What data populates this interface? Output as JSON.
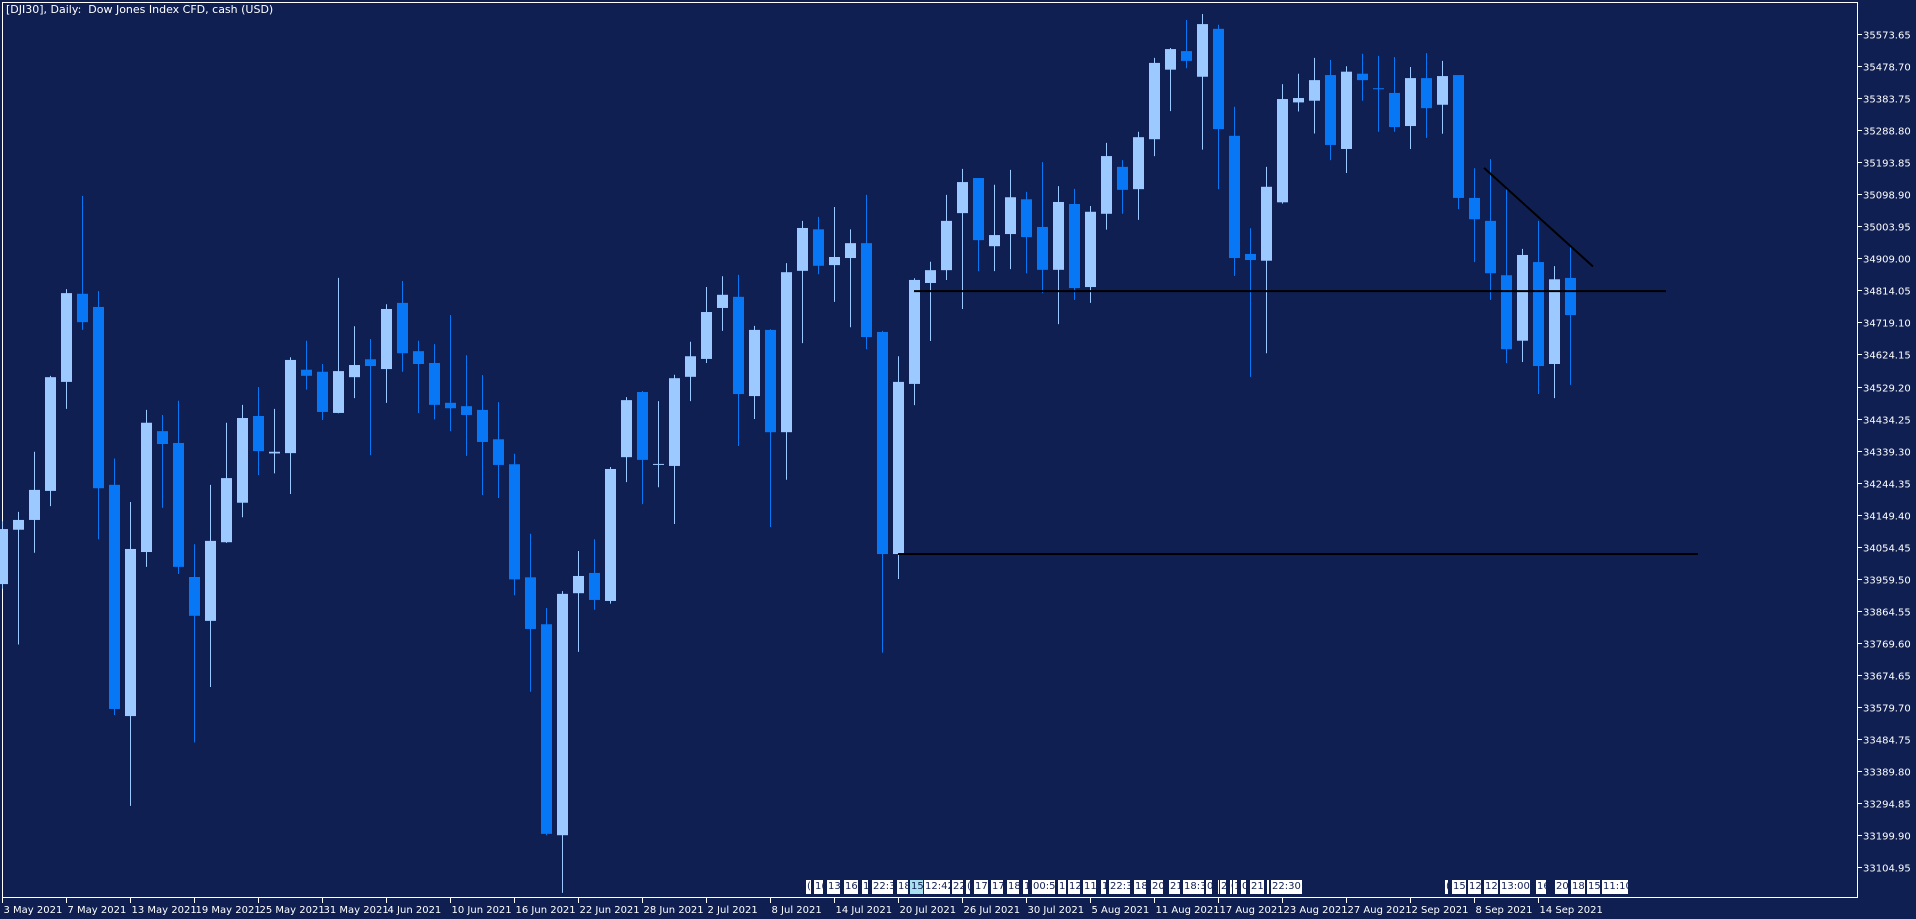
{
  "header": {
    "title": "[DJI30], Daily:  Dow Jones Index CFD, cash (USD)"
  },
  "colors": {
    "background": "#101f52",
    "bull": "#9cc9ff",
    "bear": "#0877f6",
    "axis": "#ffffff",
    "lines": "#000000",
    "event_highlight": "#a8e0ee"
  },
  "events": [
    "(",
    "1(",
    "13(",
    "16",
    "1",
    "22:3",
    "18",
    "15",
    "12:42",
    "22",
    "(",
    "17",
    "17",
    "18",
    "1",
    "00:5",
    "11",
    "12:",
    "11:",
    "1",
    "22:3",
    "18",
    "20",
    "21",
    "18:3",
    "0",
    "(",
    "2",
    "0",
    "1",
    "0",
    "21",
    ":",
    "22:30",
    "(",
    "15",
    "12:",
    "12:",
    "13:00",
    "16",
    "20",
    "18",
    "15",
    "11:10"
  ],
  "chart_data": {
    "type": "candlestick",
    "symbol": "DJI30",
    "timeframe": "Daily",
    "ylim": [
      33009,
      35674
    ],
    "grid": false,
    "y_ticks": [
      "35573.65",
      "35478.70",
      "35383.75",
      "35288.80",
      "35193.85",
      "35098.90",
      "35003.95",
      "34909.00",
      "34814.05",
      "34719.10",
      "34624.15",
      "34529.20",
      "34434.25",
      "34339.30",
      "34244.35",
      "34149.40",
      "34054.45",
      "33959.50",
      "33864.55",
      "33769.60",
      "33674.65",
      "33579.70",
      "33484.75",
      "33389.80",
      "33294.85",
      "33199.90",
      "33104.95"
    ],
    "x_ticks": [
      "3 May 2021",
      "7 May 2021",
      "13 May 2021",
      "19 May 2021",
      "25 May 2021",
      "31 May 2021",
      "4 Jun 2021",
      "10 Jun 2021",
      "16 Jun 2021",
      "22 Jun 2021",
      "28 Jun 2021",
      "2 Jul 2021",
      "8 Jul 2021",
      "14 Jul 2021",
      "20 Jul 2021",
      "26 Jul 2021",
      "30 Jul 2021",
      "5 Aug 2021",
      "11 Aug 2021",
      "17 Aug 2021",
      "23 Aug 2021",
      "27 Aug 2021",
      "2 Sep 2021",
      "8 Sep 2021",
      "14 Sep 2021"
    ],
    "columns": [
      "date",
      "open",
      "high",
      "low",
      "close"
    ],
    "bars": [
      [
        "2021-05-03",
        33944,
        34130,
        33930,
        34107
      ],
      [
        "2021-05-04",
        34105,
        34158,
        33765,
        34134
      ],
      [
        "2021-05-05",
        34134,
        34336,
        34037,
        34223
      ],
      [
        "2021-05-06",
        34220,
        34561,
        34175,
        34557
      ],
      [
        "2021-05-07",
        34543,
        34818,
        34463,
        34806
      ],
      [
        "2021-05-10",
        34804,
        35094,
        34697,
        34720
      ],
      [
        "2021-05-11",
        34765,
        34812,
        34077,
        34228
      ],
      [
        "2021-05-12",
        34238,
        34316,
        33556,
        33574
      ],
      [
        "2021-05-13",
        33553,
        34187,
        33287,
        34048
      ],
      [
        "2021-05-14",
        34039,
        34460,
        33995,
        34422
      ],
      [
        "2021-05-17",
        34397,
        34445,
        34170,
        34359
      ],
      [
        "2021-05-18",
        34362,
        34487,
        33974,
        33995
      ],
      [
        "2021-05-19",
        33965,
        34062,
        33475,
        33850
      ],
      [
        "2021-05-20",
        33835,
        34238,
        33639,
        34072
      ],
      [
        "2021-05-21",
        34068,
        34422,
        34066,
        34258
      ],
      [
        "2021-05-24",
        34185,
        34475,
        34142,
        34436
      ],
      [
        "2021-05-25",
        34442,
        34528,
        34267,
        34338
      ],
      [
        "2021-05-26",
        34331,
        34463,
        34272,
        34336
      ],
      [
        "2021-05-27",
        34332,
        34616,
        34211,
        34608
      ],
      [
        "2021-05-28",
        34579,
        34665,
        34520,
        34561
      ],
      [
        "2021-05-31",
        34573,
        34596,
        34430,
        34454
      ],
      [
        "2021-06-01",
        34451,
        34851,
        34450,
        34575
      ],
      [
        "2021-06-02",
        34557,
        34708,
        34495,
        34593
      ],
      [
        "2021-06-03",
        34610,
        34670,
        34326,
        34590
      ],
      [
        "2021-06-04",
        34581,
        34773,
        34481,
        34759
      ],
      [
        "2021-06-07",
        34777,
        34842,
        34573,
        34628
      ],
      [
        "2021-06-08",
        34634,
        34665,
        34451,
        34596
      ],
      [
        "2021-06-09",
        34599,
        34655,
        34432,
        34475
      ],
      [
        "2021-06-10",
        34481,
        34741,
        34397,
        34465
      ],
      [
        "2021-06-11",
        34471,
        34622,
        34324,
        34445
      ],
      [
        "2021-06-14",
        34460,
        34563,
        34208,
        34365
      ],
      [
        "2021-06-15",
        34373,
        34483,
        34199,
        34297
      ],
      [
        "2021-06-16",
        34299,
        34330,
        33911,
        33958
      ],
      [
        "2021-06-17",
        33964,
        34093,
        33625,
        33811
      ],
      [
        "2021-06-18",
        33825,
        33873,
        33200,
        33204
      ],
      [
        "2021-06-21",
        33200,
        33923,
        33029,
        33915
      ],
      [
        "2021-06-22",
        33917,
        34042,
        33743,
        33968
      ],
      [
        "2021-06-23",
        33977,
        34077,
        33868,
        33897
      ],
      [
        "2021-06-24",
        33894,
        34291,
        33886,
        34285
      ],
      [
        "2021-06-25",
        34320,
        34498,
        34246,
        34489
      ],
      [
        "2021-06-28",
        34513,
        34516,
        34181,
        34312
      ],
      [
        "2021-06-29",
        34297,
        34486,
        34231,
        34300
      ],
      [
        "2021-06-30",
        34294,
        34564,
        34122,
        34554
      ],
      [
        "2021-07-01",
        34558,
        34662,
        34486,
        34619
      ],
      [
        "2021-07-02",
        34611,
        34824,
        34599,
        34750
      ],
      [
        "2021-07-05",
        34762,
        34856,
        34694,
        34801
      ],
      [
        "2021-07-06",
        34795,
        34860,
        34353,
        34507
      ],
      [
        "2021-07-07",
        34501,
        34709,
        34433,
        34697
      ],
      [
        "2021-07-08",
        34697,
        34699,
        34113,
        34394
      ],
      [
        "2021-07-09",
        34394,
        34895,
        34253,
        34868
      ],
      [
        "2021-07-12",
        34872,
        35020,
        34658,
        34999
      ],
      [
        "2021-07-13",
        34995,
        35032,
        34862,
        34887
      ],
      [
        "2021-07-14",
        34889,
        35061,
        34780,
        34913
      ],
      [
        "2021-07-15",
        34910,
        34995,
        34705,
        34954
      ],
      [
        "2021-07-16",
        34954,
        35097,
        34640,
        34676
      ],
      [
        "2021-07-19",
        34691,
        34694,
        33741,
        34033
      ],
      [
        "2021-07-20",
        34033,
        34619,
        33959,
        34543
      ],
      [
        "2021-07-21",
        34537,
        34850,
        34474,
        34845
      ],
      [
        "2021-07-22",
        34836,
        34899,
        34664,
        34874
      ],
      [
        "2021-07-23",
        34874,
        35097,
        34845,
        35020
      ],
      [
        "2021-07-26",
        35043,
        35174,
        34759,
        35135
      ],
      [
        "2021-07-27",
        35147,
        35147,
        34871,
        34963
      ],
      [
        "2021-07-28",
        34945,
        35127,
        34871,
        34978
      ],
      [
        "2021-07-29",
        34981,
        35171,
        34877,
        35090
      ],
      [
        "2021-07-30",
        35084,
        35106,
        34865,
        34972
      ],
      [
        "2021-08-02",
        35002,
        35194,
        34806,
        34875
      ],
      [
        "2021-08-03",
        34875,
        35123,
        34714,
        35076
      ],
      [
        "2021-08-04",
        35070,
        35115,
        34786,
        34821
      ],
      [
        "2021-08-05",
        34824,
        35064,
        34777,
        35047
      ],
      [
        "2021-08-06",
        35041,
        35251,
        34994,
        35212
      ],
      [
        "2021-08-09",
        35180,
        35200,
        35041,
        35112
      ],
      [
        "2021-08-10",
        35114,
        35284,
        35023,
        35268
      ],
      [
        "2021-08-11",
        35262,
        35503,
        35212,
        35488
      ],
      [
        "2021-08-12",
        35468,
        35532,
        35345,
        35529
      ],
      [
        "2021-08-13",
        35523,
        35615,
        35472,
        35494
      ],
      [
        "2021-08-16",
        35447,
        35633,
        35231,
        35603
      ],
      [
        "2021-08-17",
        35589,
        35601,
        35114,
        35292
      ],
      [
        "2021-08-18",
        35272,
        35358,
        34857,
        34910
      ],
      [
        "2021-08-19",
        34922,
        34998,
        34558,
        34904
      ],
      [
        "2021-08-20",
        34902,
        35180,
        34628,
        35121
      ],
      [
        "2021-08-23",
        35075,
        35425,
        35071,
        35381
      ],
      [
        "2021-08-24",
        35371,
        35456,
        35344,
        35384
      ],
      [
        "2021-08-25",
        35376,
        35503,
        35279,
        35437
      ],
      [
        "2021-08-26",
        35452,
        35497,
        35200,
        35245
      ],
      [
        "2021-08-27",
        35233,
        35478,
        35162,
        35462
      ],
      [
        "2021-08-30",
        35456,
        35515,
        35376,
        35437
      ],
      [
        "2021-08-31",
        35413,
        35509,
        35284,
        35411
      ],
      [
        "2021-09-01",
        35399,
        35505,
        35284,
        35298
      ],
      [
        "2021-09-02",
        35301,
        35476,
        35233,
        35443
      ],
      [
        "2021-09-03",
        35443,
        35517,
        35266,
        35354
      ],
      [
        "2021-09-06",
        35364,
        35494,
        35278,
        35449
      ],
      [
        "2021-09-07",
        35452,
        35452,
        35055,
        35088
      ],
      [
        "2021-09-08",
        35088,
        35176,
        34898,
        35025
      ],
      [
        "2021-09-09",
        35020,
        35203,
        34786,
        34865
      ],
      [
        "2021-09-10",
        34859,
        35114,
        34599,
        34640
      ],
      [
        "2021-09-13",
        34665,
        34937,
        34602,
        34919
      ],
      [
        "2021-09-14",
        34898,
        35020,
        34507,
        34590
      ],
      [
        "2021-09-15",
        34596,
        34886,
        34495,
        34847
      ],
      [
        "2021-09-16",
        34851,
        34943,
        34534,
        34741
      ]
    ],
    "drawn_lines": [
      {
        "kind": "horizontal",
        "price": 34812,
        "from": "2021-07-21",
        "to": "2021-09-24"
      },
      {
        "kind": "horizontal",
        "price": 34033,
        "from": "2021-07-20",
        "to": "2021-09-28"
      },
      {
        "kind": "trend",
        "from": "2021-09-08",
        "from_price": 35177,
        "to": "2021-09-17",
        "to_price": 34885
      }
    ]
  }
}
